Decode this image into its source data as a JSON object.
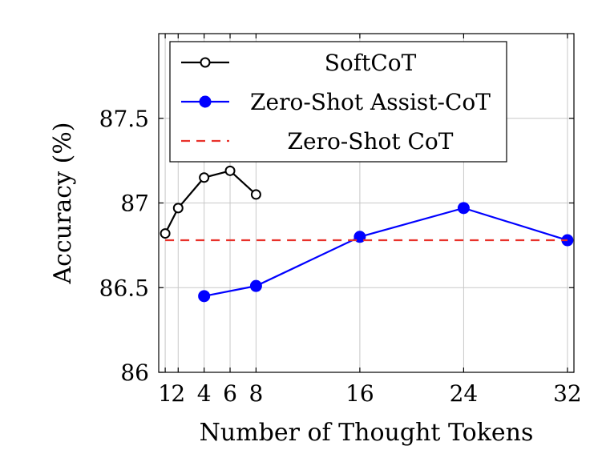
{
  "chart_data": {
    "type": "line",
    "xlabel": "Number of Thought Tokens",
    "ylabel": "Accuracy (%)",
    "xlim": [
      0.5,
      32.5
    ],
    "ylim": [
      86,
      88
    ],
    "x_ticks": [
      1,
      2,
      4,
      6,
      8,
      16,
      24,
      32
    ],
    "x_tick_labels": [
      "1",
      "2",
      "4",
      "6",
      "8",
      "16",
      "24",
      "32"
    ],
    "y_ticks": [
      86,
      86.5,
      87,
      87.5
    ],
    "y_tick_labels": [
      "86",
      "86.5",
      "87",
      "87.5"
    ],
    "grid": true,
    "legend_position": "top-right",
    "series": [
      {
        "name": "SoftCoT",
        "x": [
          1,
          2,
          4,
          6,
          8
        ],
        "values": [
          86.82,
          86.97,
          87.15,
          87.19,
          87.05
        ],
        "color": "#000000",
        "marker": "open-circle",
        "line": "solid"
      },
      {
        "name": "Zero-Shot Assist-CoT",
        "x": [
          4,
          8,
          16,
          24,
          32
        ],
        "values": [
          86.45,
          86.51,
          86.8,
          86.97,
          86.78
        ],
        "color": "#0000ff",
        "marker": "filled-circle",
        "line": "solid"
      },
      {
        "name": "Zero-Shot CoT",
        "x": [
          1,
          32
        ],
        "values": [
          86.78,
          86.78
        ],
        "color": "#e8312a",
        "marker": "none",
        "line": "dashed"
      }
    ]
  }
}
